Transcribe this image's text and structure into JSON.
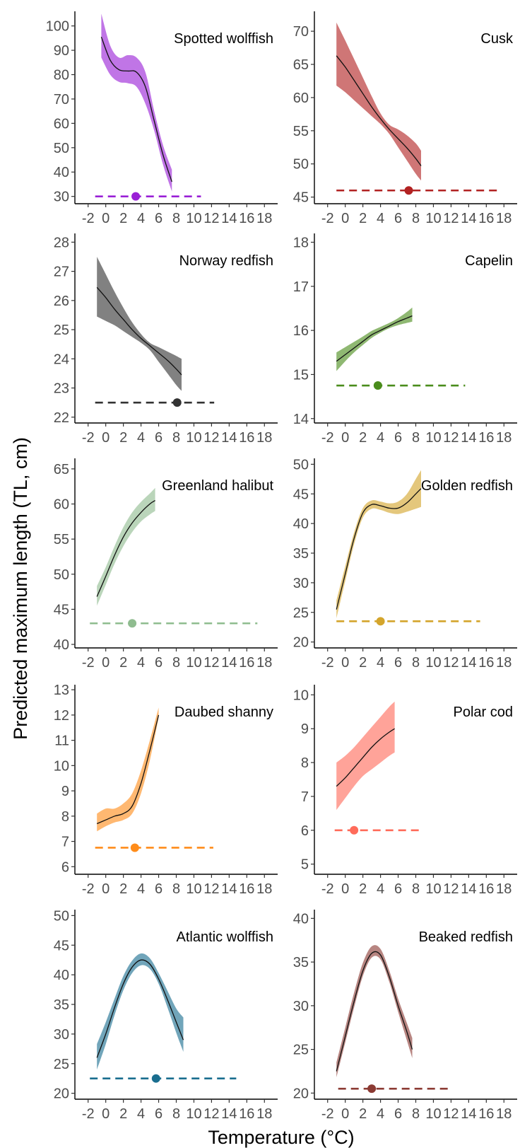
{
  "figure": {
    "xlabel": "Temperature (°C)",
    "ylabel": "Predicted maximum length (TL, cm)"
  },
  "chart_data": [
    {
      "type": "line",
      "title": "Spotted wolffish",
      "color": "#9a20d6",
      "xticks": [
        "-2",
        "0",
        "2",
        "4",
        "6",
        "8",
        "10",
        "12",
        "14",
        "16",
        "18"
      ],
      "xlim": [
        -3.5,
        19.5
      ],
      "ylim": [
        27,
        106
      ],
      "yticks": [
        30,
        40,
        50,
        60,
        70,
        80,
        90,
        100
      ],
      "grid": false,
      "series": [
        {
          "x": [
            -0.5,
            0.5,
            1.5,
            2.5,
            3.5,
            4.5,
            5.5,
            6.5,
            7.5
          ],
          "y": [
            95.5,
            86,
            82,
            81.5,
            81,
            75,
            61,
            47,
            36
          ],
          "lower": [
            87,
            80,
            77,
            76.5,
            75,
            68,
            57,
            43,
            32
          ],
          "upper": [
            105,
            92,
            87,
            88,
            87,
            81,
            65,
            51,
            41
          ]
        }
      ],
      "reference": {
        "point": 3.4,
        "range": [
          -1.2,
          10.8
        ],
        "y": 30
      }
    },
    {
      "type": "line",
      "title": "Cusk",
      "color": "#b22222",
      "xticks": [
        "-2",
        "0",
        "2",
        "4",
        "6",
        "8",
        "10",
        "12",
        "14",
        "16",
        "18"
      ],
      "xlim": [
        -3.5,
        19.5
      ],
      "ylim": [
        44,
        73
      ],
      "yticks": [
        45,
        50,
        55,
        60,
        65,
        70
      ],
      "grid": false,
      "series": [
        {
          "x": [
            -1,
            0,
            1,
            2,
            3,
            4,
            5,
            6,
            7,
            8,
            8.6
          ],
          "y": [
            66.3,
            64.6,
            62.6,
            60.6,
            58.6,
            56.8,
            55.2,
            53.8,
            52.4,
            50.8,
            49.7
          ],
          "lower": [
            61.8,
            60.8,
            59.6,
            58.4,
            57.2,
            56,
            54.5,
            52.5,
            50.5,
            48.5,
            47.5
          ],
          "upper": [
            71.3,
            68.6,
            65.8,
            63,
            60.2,
            57.6,
            55.9,
            55.2,
            54.3,
            53.1,
            52
          ]
        }
      ],
      "reference": {
        "point": 7.2,
        "range": [
          -1,
          17.6
        ],
        "y": 46
      }
    },
    {
      "type": "line",
      "title": "Norway redfish",
      "color": "#333333",
      "xticks": [
        "-2",
        "0",
        "2",
        "4",
        "6",
        "8",
        "10",
        "12",
        "14",
        "16",
        "18"
      ],
      "xlim": [
        -3.5,
        19.5
      ],
      "ylim": [
        21.8,
        28.3
      ],
      "yticks": [
        22,
        23,
        24,
        25,
        26,
        27,
        28
      ],
      "grid": false,
      "series": [
        {
          "x": [
            -1,
            0,
            1,
            2,
            3,
            4,
            5,
            6,
            7,
            8,
            8.6
          ],
          "y": [
            26.45,
            26.1,
            25.7,
            25.35,
            25.0,
            24.7,
            24.45,
            24.2,
            23.95,
            23.65,
            23.45
          ],
          "lower": [
            25.45,
            25.3,
            25.15,
            24.95,
            24.75,
            24.55,
            24.3,
            23.9,
            23.5,
            23.1,
            22.9
          ],
          "upper": [
            27.5,
            26.9,
            26.3,
            25.75,
            25.25,
            24.85,
            24.55,
            24.4,
            24.25,
            24.1,
            24.0
          ]
        }
      ],
      "reference": {
        "point": 8.1,
        "range": [
          -1.2,
          12.3
        ],
        "y": 22.5
      }
    },
    {
      "type": "line",
      "title": "Capelin",
      "color": "#4a8c1c",
      "xticks": [
        "-2",
        "0",
        "2",
        "4",
        "6",
        "8",
        "10",
        "12",
        "14",
        "16",
        "18"
      ],
      "xlim": [
        -3.5,
        19.5
      ],
      "ylim": [
        13.9,
        18.2
      ],
      "yticks": [
        14,
        15,
        16,
        17,
        18
      ],
      "grid": false,
      "series": [
        {
          "x": [
            -1,
            0,
            1,
            2,
            3,
            4,
            5,
            6,
            7,
            7.6
          ],
          "y": [
            15.3,
            15.45,
            15.6,
            15.75,
            15.9,
            16.0,
            16.1,
            16.2,
            16.28,
            16.33
          ],
          "lower": [
            15.08,
            15.3,
            15.5,
            15.67,
            15.83,
            15.95,
            16.05,
            16.12,
            16.17,
            16.2
          ],
          "upper": [
            15.5,
            15.62,
            15.74,
            15.86,
            15.99,
            16.08,
            16.17,
            16.28,
            16.42,
            16.52
          ]
        }
      ],
      "reference": {
        "point": 3.7,
        "range": [
          -1,
          13.6
        ],
        "y": 14.75
      }
    },
    {
      "type": "line",
      "title": "Greenland halibut",
      "color": "#8fbc8f",
      "xticks": [
        "-2",
        "0",
        "2",
        "4",
        "6",
        "8",
        "10",
        "12",
        "14",
        "16",
        "18"
      ],
      "xlim": [
        -3.5,
        19.5
      ],
      "ylim": [
        39.5,
        66.5
      ],
      "yticks": [
        40,
        45,
        50,
        55,
        60,
        65
      ],
      "grid": false,
      "series": [
        {
          "x": [
            -1,
            0,
            1,
            2,
            3,
            4,
            5,
            5.6
          ],
          "y": [
            46.8,
            49.7,
            52.7,
            55.3,
            57.3,
            58.8,
            60.0,
            60.5
          ],
          "lower": [
            45.5,
            48.5,
            51.5,
            54.0,
            56.0,
            57.5,
            58.5,
            59.0
          ],
          "upper": [
            48.3,
            51.0,
            54.0,
            56.7,
            58.8,
            60.3,
            61.5,
            62.3
          ]
        }
      ],
      "reference": {
        "point": 3.0,
        "range": [
          -1.8,
          17.2
        ],
        "y": 43
      }
    },
    {
      "type": "line",
      "title": "Golden redfish",
      "color": "#d4a52c",
      "xticks": [
        "-2",
        "0",
        "2",
        "4",
        "6",
        "8",
        "10",
        "12",
        "14",
        "16",
        "18"
      ],
      "xlim": [
        -3.5,
        19.5
      ],
      "ylim": [
        19,
        51
      ],
      "yticks": [
        20,
        25,
        30,
        35,
        40,
        45,
        50
      ],
      "grid": false,
      "series": [
        {
          "x": [
            -1,
            0,
            1,
            2,
            3,
            4,
            5,
            6,
            7,
            8,
            8.6
          ],
          "y": [
            25.5,
            31.5,
            37.5,
            41.8,
            43.2,
            43.0,
            42.6,
            42.6,
            43.5,
            45.0,
            45.9
          ],
          "lower": [
            24.0,
            30.3,
            36.5,
            41.0,
            42.5,
            42.3,
            41.8,
            41.6,
            42.0,
            42.5,
            42.8
          ],
          "upper": [
            27.0,
            32.8,
            38.5,
            42.6,
            43.9,
            43.7,
            43.4,
            43.7,
            45.0,
            47.5,
            49.0
          ]
        }
      ],
      "reference": {
        "point": 4.0,
        "range": [
          -1,
          15.3
        ],
        "y": 23.5
      }
    },
    {
      "type": "line",
      "title": "Daubed shanny",
      "color": "#ff8c1a",
      "xticks": [
        "-2",
        "0",
        "2",
        "4",
        "6",
        "8",
        "10",
        "12",
        "14",
        "16",
        "18"
      ],
      "xlim": [
        -3.5,
        19.5
      ],
      "ylim": [
        5.7,
        13.2
      ],
      "yticks": [
        6,
        7,
        8,
        9,
        10,
        11,
        12,
        13
      ],
      "grid": false,
      "series": [
        {
          "x": [
            -1,
            0,
            1,
            2,
            3,
            4,
            5,
            6
          ],
          "y": [
            7.7,
            7.85,
            8.0,
            8.1,
            8.4,
            9.3,
            10.6,
            12.0
          ],
          "lower": [
            7.4,
            7.6,
            7.75,
            7.85,
            8.1,
            8.9,
            10.2,
            11.9
          ],
          "upper": [
            8.1,
            8.3,
            8.3,
            8.5,
            8.9,
            9.8,
            11.0,
            12.3
          ]
        }
      ],
      "reference": {
        "point": 3.3,
        "range": [
          -1.2,
          12.2
        ],
        "y": 6.75
      }
    },
    {
      "type": "line",
      "title": "Polar cod",
      "color": "#ff6b5a",
      "xticks": [
        "-2",
        "0",
        "2",
        "4",
        "6",
        "8",
        "10",
        "12",
        "14",
        "16",
        "18"
      ],
      "xlim": [
        -3.5,
        19.5
      ],
      "ylim": [
        4.7,
        10.3
      ],
      "yticks": [
        5,
        6,
        7,
        8,
        9,
        10
      ],
      "grid": false,
      "series": [
        {
          "x": [
            -1,
            0,
            1,
            2,
            3,
            4,
            5,
            5.6
          ],
          "y": [
            7.3,
            7.55,
            7.85,
            8.15,
            8.45,
            8.7,
            8.9,
            9.0
          ],
          "lower": [
            6.6,
            6.95,
            7.3,
            7.6,
            7.8,
            8.0,
            8.2,
            8.3
          ],
          "upper": [
            8.0,
            8.2,
            8.45,
            8.75,
            9.05,
            9.35,
            9.65,
            9.8
          ]
        }
      ],
      "reference": {
        "point": 1.0,
        "range": [
          -1.2,
          8.5
        ],
        "y": 6
      }
    },
    {
      "type": "line",
      "title": "Atlantic wolffish",
      "color": "#1a6e8f",
      "xticks": [
        "-2",
        "0",
        "2",
        "4",
        "6",
        "8",
        "10",
        "12",
        "14",
        "16",
        "18"
      ],
      "xlim": [
        -3.5,
        19.5
      ],
      "ylim": [
        19,
        51
      ],
      "yticks": [
        20,
        25,
        30,
        35,
        40,
        45,
        50
      ],
      "grid": false,
      "series": [
        {
          "x": [
            -1,
            0,
            1,
            2,
            3,
            4,
            5,
            6,
            7,
            8,
            8.8
          ],
          "y": [
            26.0,
            30.0,
            34.5,
            38.5,
            41.3,
            42.5,
            41.8,
            39.3,
            35.8,
            32.0,
            29.0
          ],
          "lower": [
            24.0,
            28.3,
            33.2,
            37.4,
            40.3,
            41.6,
            41.0,
            38.5,
            34.5,
            30.2,
            27.0
          ],
          "upper": [
            28.3,
            32.0,
            36.0,
            39.8,
            42.4,
            43.6,
            42.8,
            40.3,
            37.3,
            34.3,
            32.8
          ]
        }
      ],
      "reference": {
        "point": 5.7,
        "range": [
          -1.8,
          14.8
        ],
        "y": 22.5
      }
    },
    {
      "type": "line",
      "title": "Beaked redfish",
      "color": "#8b3a33",
      "xticks": [
        "-2",
        "0",
        "2",
        "4",
        "6",
        "8",
        "10",
        "12",
        "14",
        "16",
        "18"
      ],
      "xlim": [
        -3.5,
        19.5
      ],
      "ylim": [
        19.3,
        41
      ],
      "yticks": [
        20,
        25,
        30,
        35,
        40
      ],
      "grid": false,
      "series": [
        {
          "x": [
            -1,
            0,
            1,
            2,
            3,
            4,
            5,
            6,
            7,
            7.6
          ],
          "y": [
            22.5,
            26.5,
            30.5,
            34.0,
            36.0,
            35.8,
            33.3,
            30.0,
            27.0,
            25.0
          ],
          "lower": [
            21.8,
            25.8,
            29.8,
            33.4,
            35.5,
            35.3,
            32.7,
            29.3,
            26.0,
            24.0
          ],
          "upper": [
            23.5,
            27.5,
            31.5,
            34.9,
            36.8,
            36.5,
            34.0,
            30.8,
            28.0,
            26.3
          ]
        }
      ],
      "reference": {
        "point": 3.0,
        "range": [
          -0.8,
          12.1
        ],
        "y": 20.5
      }
    }
  ]
}
